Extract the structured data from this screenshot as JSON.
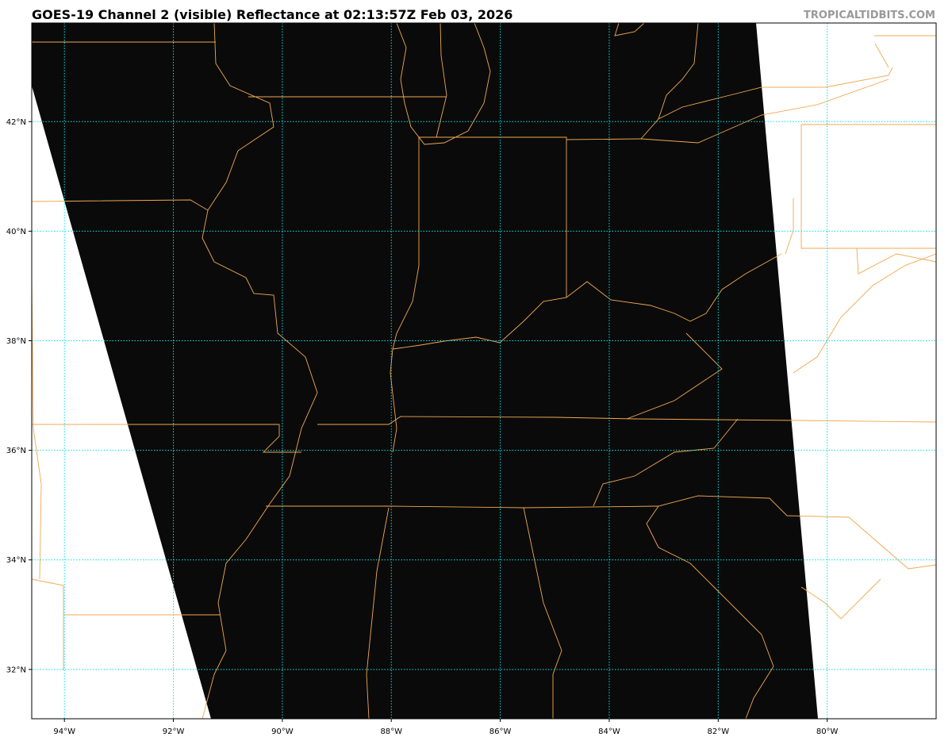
{
  "header": {
    "title": "GOES-19 Channel 2 (visible) Reflectance at 02:13:57Z Feb 03, 2026",
    "credit": "TROPICALTIDBITS.COM"
  },
  "map": {
    "projection": "plate-carree",
    "extent": {
      "lon_min": -94.6,
      "lon_max": -78.0,
      "lat_min": 31.1,
      "lat_max": 43.8
    },
    "lon_ticks": [
      -94,
      -92,
      -90,
      -88,
      -86,
      -84,
      -82,
      -80
    ],
    "lon_labels": [
      "94°W",
      "92°W",
      "90°W",
      "88°W",
      "86°W",
      "84°W",
      "82°W",
      "80°W"
    ],
    "lat_ticks": [
      42,
      40,
      38,
      36,
      34,
      32
    ],
    "lat_labels": [
      "42°N",
      "40°N",
      "38°N",
      "36°N",
      "34°N",
      "32°N"
    ],
    "colors": {
      "imagery": "#0a0a0a",
      "no_data": "#ffffff",
      "borders": "#f0a850",
      "gridlines": "#00e5e5"
    },
    "gridlines": true
  }
}
